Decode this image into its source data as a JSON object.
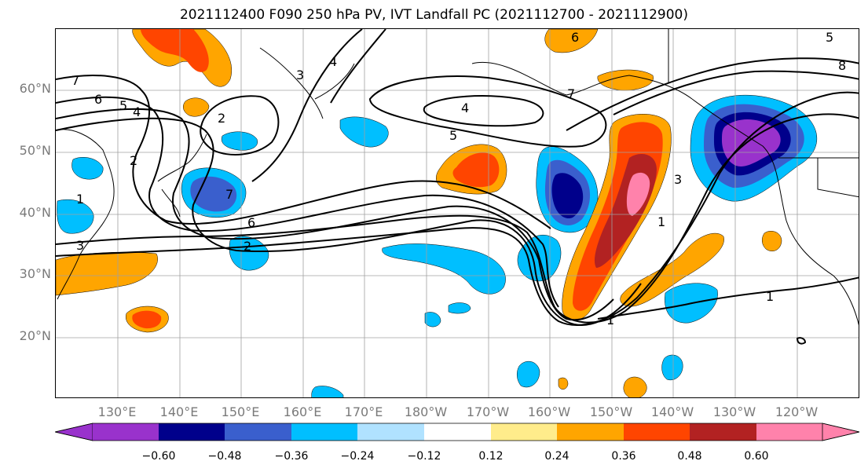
{
  "title": "2021112400 F090 250 hPa PV, IVT Landfall PC (2021112700 - 2021112900)",
  "lat_labels": [
    "60°N",
    "50°N",
    "40°N",
    "30°N",
    "20°N"
  ],
  "lon_labels": [
    "130°E",
    "140°E",
    "150°E",
    "160°E",
    "170°E",
    "180°W",
    "170°W",
    "160°W",
    "150°W",
    "140°W",
    "130°W",
    "120°W"
  ],
  "colorbar": {
    "ticks": [
      "−0.60",
      "−0.48",
      "−0.36",
      "−0.24",
      "−0.12",
      "0.12",
      "0.24",
      "0.36",
      "0.48",
      "0.60"
    ],
    "colors": [
      "#9932cc",
      "#00008b",
      "#3a5fcd",
      "#00bfff",
      "#b0e2ff",
      "#ffffff",
      "#ffec8b",
      "#ffa500",
      "#ff4500",
      "#b22222",
      "#ff82ab"
    ]
  },
  "contour_labels": {
    "c7_left": "7",
    "c6_left": "6",
    "c5_left": "5",
    "c4_left": "4",
    "c2_left": "2",
    "c1_left": "1",
    "c3_left": "3",
    "c3_top": "3",
    "c4_top": "4",
    "c2_mid": "2",
    "c7_mid": "7",
    "c6_mid": "6",
    "c4_mid": "4",
    "c5_mid": "5",
    "c7_right": "7",
    "c6_top": "6",
    "c3_east": "3",
    "c1_east": "1",
    "c1_south": "1",
    "c1_far": "1",
    "c5_ne": "5",
    "c8_ne": "8",
    "c2_small": "2"
  }
}
